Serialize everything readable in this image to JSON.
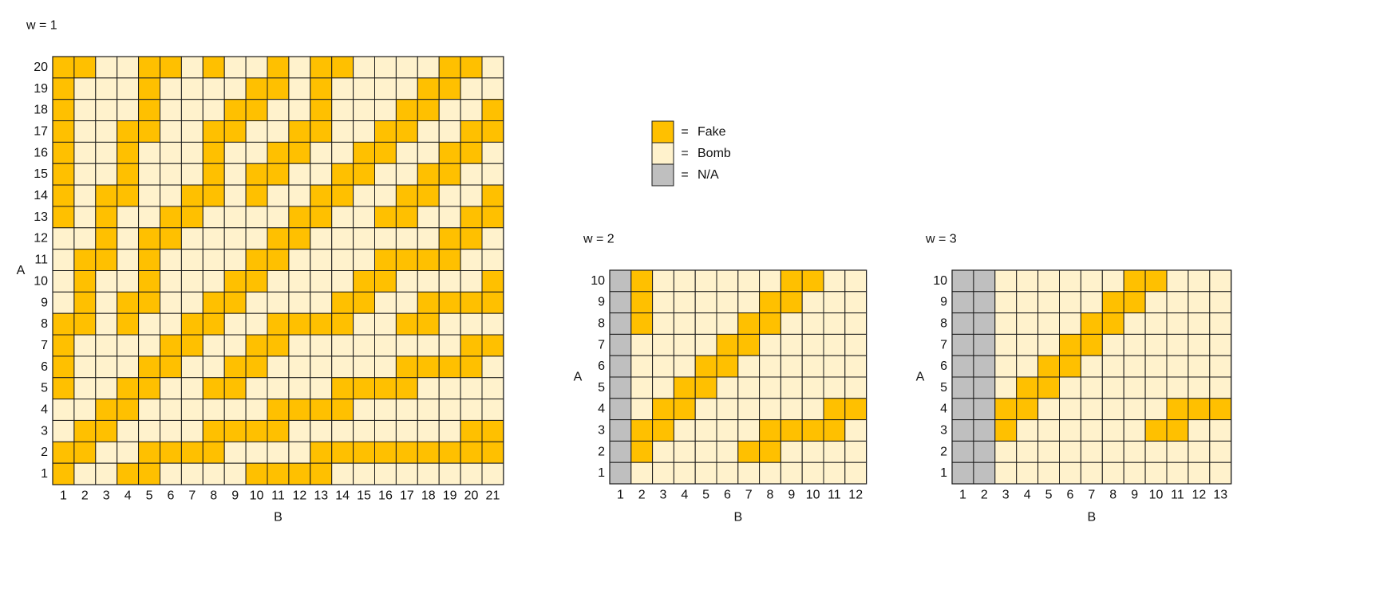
{
  "legend": {
    "items": [
      {
        "swatch_color": "#ffc000",
        "symbol": "=",
        "label": "Fake"
      },
      {
        "swatch_color": "#fff2cc",
        "symbol": "=",
        "label": "Bomb"
      },
      {
        "swatch_color": "#bfbfbf",
        "symbol": "=",
        "label": "N/A"
      }
    ]
  },
  "colors": {
    "fake": "#ffc000",
    "bomb": "#fff2cc",
    "na": "#bfbfbf",
    "border": "#1a1a1a"
  },
  "chart_data": [
    {
      "type": "heatmap",
      "title": "w = 1",
      "xlabel": "B",
      "ylabel": "A",
      "x": [
        1,
        2,
        3,
        4,
        5,
        6,
        7,
        8,
        9,
        10,
        11,
        12,
        13,
        14,
        15,
        16,
        17,
        18,
        19,
        20,
        21
      ],
      "y": [
        20,
        19,
        18,
        17,
        16,
        15,
        14,
        13,
        12,
        11,
        10,
        9,
        8,
        7,
        6,
        5,
        4,
        3,
        2,
        1
      ],
      "cells": [
        "FFBBFFBFBBFBFFBBBBFFB",
        "FBBBFBBBBFFBFBBBBFFBB",
        "FBBBFBBBFFBBFBBBFFBBF",
        "FBBFFBBFFBBFFBBFFBBFF",
        "FBBFBBBFBBFFBBFFBBFFB",
        "FBBFBBBFBFFBBFFBBFFBB",
        "FBFFBBFFBFBBFFBBFFBBF",
        "FBFBBFFBBBBFFBBFFBBFF",
        "BBFBFFBBBBFFBBBBBBFFB",
        "BFFBFBBBBFFBBBBFFFFBB",
        "BFBBFBBBFFBBBBFFBBBBF",
        "BFBFFBBFFBBBBFFBBFFFF",
        "FFBFBBFFBBFFFFBBFFBBB",
        "FBBBBFFBBFFBBBBBBBBFF",
        "FBBBFFBBFFBBBBBBFFFFB",
        "FBBFFBBFFBBBBFFFFBBBB",
        "BBFFBBBBBBFFFFBBBBBBB",
        "BFFBBBBFFFFBBBBBBBBFF",
        "FFBBFFFFBBBBFFFFFFFFF",
        "FBBFFBBBBFFFFBBBBBBBB"
      ]
    },
    {
      "type": "heatmap",
      "title": "w = 2",
      "xlabel": "B",
      "ylabel": "A",
      "x": [
        1,
        2,
        3,
        4,
        5,
        6,
        7,
        8,
        9,
        10,
        11,
        12
      ],
      "y": [
        10,
        9,
        8,
        7,
        6,
        5,
        4,
        3,
        2,
        1
      ],
      "cells": [
        "NFBBBBBBFFBB",
        "NFBBBBBFFBBB",
        "NFBBBBFFBBBB",
        "NBBBBFFBBBBB",
        "NBBBFFBBBBBB",
        "NBBFFBBBBBBB",
        "NBFFBBBBBBFF",
        "NFFBBBBFFFFB",
        "NFBBBBFFBBBB",
        "NBBBBBBBBBBB"
      ]
    },
    {
      "type": "heatmap",
      "title": "w = 3",
      "xlabel": "B",
      "ylabel": "A",
      "x": [
        1,
        2,
        3,
        4,
        5,
        6,
        7,
        8,
        9,
        10,
        11,
        12,
        13
      ],
      "y": [
        10,
        9,
        8,
        7,
        6,
        5,
        4,
        3,
        2,
        1
      ],
      "cells": [
        "NNBBBBBBFFBBB",
        "NNBBBBBFFBBBB",
        "NNBBBBFFBBBBB",
        "NNBBBFFBBBBBB",
        "NNBBFFBBBBBBB",
        "NNBFFBBBBBBBB",
        "NNFFBBBBBBFFF",
        "NNFBBBBBBFFBB",
        "NNBBBBBBBBBBB",
        "NNBBBBBBBBBBB"
      ]
    }
  ]
}
